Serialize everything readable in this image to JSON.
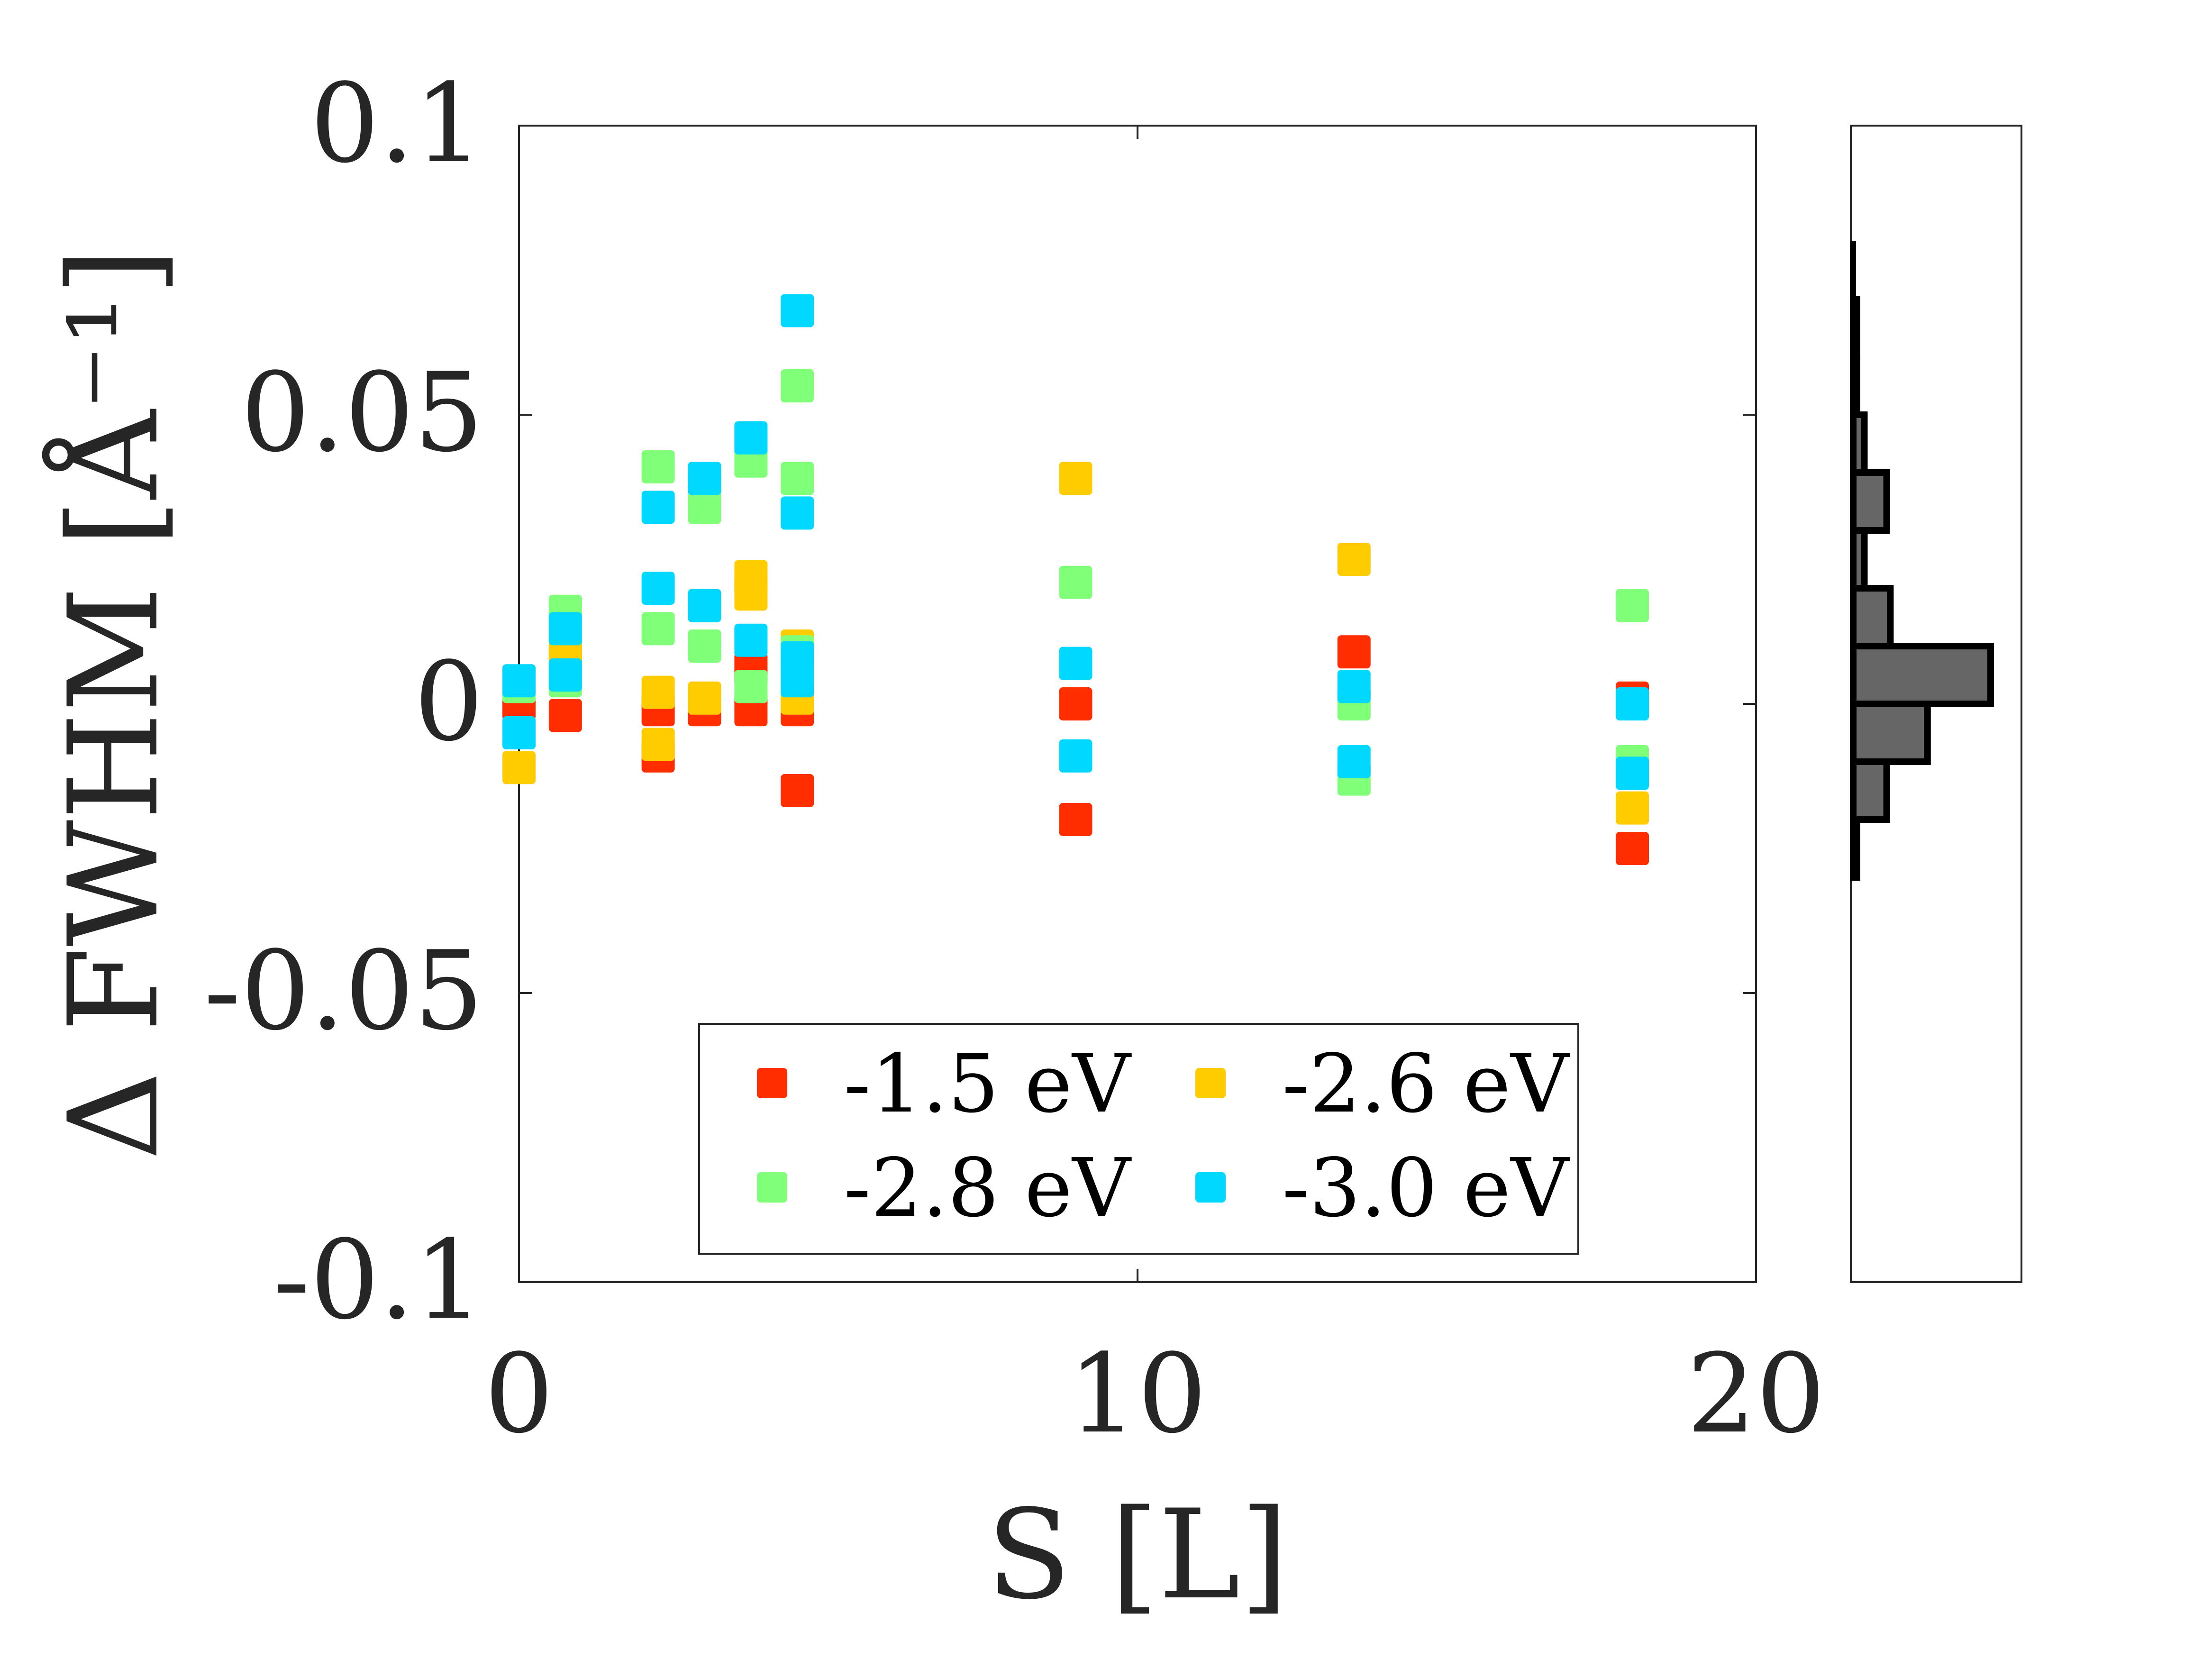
{
  "chart_data": {
    "type": "scatter",
    "xlabel": "S [L]",
    "ylabel": "Δ FWHM [Å⁻¹]",
    "xlim": [
      0,
      20
    ],
    "ylim": [
      -0.1,
      0.1
    ],
    "xticks": [
      {
        "value": 0,
        "label": "0"
      },
      {
        "value": 10,
        "label": "10"
      },
      {
        "value": 20,
        "label": "20"
      }
    ],
    "yticks": [
      {
        "value": 0.1,
        "label": "0.1"
      },
      {
        "value": 0.05,
        "label": "0.05"
      },
      {
        "value": 0,
        "label": "0"
      },
      {
        "value": -0.05,
        "label": "-0.05"
      },
      {
        "value": -0.1,
        "label": "-0.1"
      }
    ],
    "legend_position": "bottom-center",
    "series": [
      {
        "name": "-1.5 eV",
        "color": "#ff2d00",
        "points": [
          [
            0,
            0
          ],
          [
            0.75,
            0.008
          ],
          [
            0.75,
            -0.002
          ],
          [
            2.25,
            -0.001
          ],
          [
            2.25,
            -0.009
          ],
          [
            3,
            -0.001
          ],
          [
            3.75,
            0.006
          ],
          [
            3.75,
            -0.001
          ],
          [
            4.5,
            -0.001
          ],
          [
            4.5,
            -0.015
          ],
          [
            9,
            0
          ],
          [
            9,
            -0.02
          ],
          [
            13.5,
            0.009
          ],
          [
            18,
            0.001
          ],
          [
            18,
            -0.025
          ]
        ]
      },
      {
        "name": "-2.6 eV",
        "color": "#ffcc00",
        "points": [
          [
            0,
            -0.011
          ],
          [
            0.75,
            0.009
          ],
          [
            2.25,
            0.002
          ],
          [
            2.25,
            -0.007
          ],
          [
            3,
            0.001
          ],
          [
            3.75,
            0.022
          ],
          [
            3.75,
            0.019
          ],
          [
            4.5,
            0.01
          ],
          [
            4.5,
            0.001
          ],
          [
            9,
            0.039
          ],
          [
            13.5,
            0.025
          ],
          [
            18,
            -0.018
          ]
        ]
      },
      {
        "name": "-2.8 eV",
        "color": "#80ff78",
        "points": [
          [
            0,
            0.003
          ],
          [
            0.75,
            0.016
          ],
          [
            0.75,
            0.004
          ],
          [
            2.25,
            0.041
          ],
          [
            2.25,
            0.013
          ],
          [
            3,
            0.034
          ],
          [
            3,
            0.01
          ],
          [
            3.75,
            0.042
          ],
          [
            3.75,
            0.003
          ],
          [
            4.5,
            0.055
          ],
          [
            4.5,
            0.039
          ],
          [
            4.5,
            0.009
          ],
          [
            9,
            0.021
          ],
          [
            9,
            0.007
          ],
          [
            13.5,
            0
          ],
          [
            13.5,
            -0.013
          ],
          [
            18,
            0.017
          ],
          [
            18,
            -0.01
          ]
        ]
      },
      {
        "name": "-3.0 eV",
        "color": "#00d8ff",
        "points": [
          [
            0,
            0.004
          ],
          [
            0,
            -0.005
          ],
          [
            0.75,
            0.013
          ],
          [
            0.75,
            0.005
          ],
          [
            2.25,
            0.034
          ],
          [
            2.25,
            0.02
          ],
          [
            3,
            0.039
          ],
          [
            3,
            0.017
          ],
          [
            3.75,
            0.046
          ],
          [
            3.75,
            0.011
          ],
          [
            4.5,
            0.068
          ],
          [
            4.5,
            0.033
          ],
          [
            4.5,
            0.008
          ],
          [
            4.5,
            0.004
          ],
          [
            9,
            0.007
          ],
          [
            9,
            -0.009
          ],
          [
            13.5,
            0.003
          ],
          [
            13.5,
            -0.01
          ],
          [
            18,
            0
          ],
          [
            18,
            -0.012
          ]
        ]
      }
    ],
    "histogram": {
      "orientation": "horizontal",
      "bin_edges": [
        -0.03,
        -0.02,
        -0.01,
        0,
        0.01,
        0.02,
        0.03,
        0.04,
        0.05,
        0.06,
        0.07,
        0.08
      ],
      "counts": [
        1,
        9,
        20,
        37,
        10,
        3,
        9,
        3,
        1,
        1,
        0
      ],
      "fill_color": "#666666",
      "edge_color": "#000000"
    }
  }
}
